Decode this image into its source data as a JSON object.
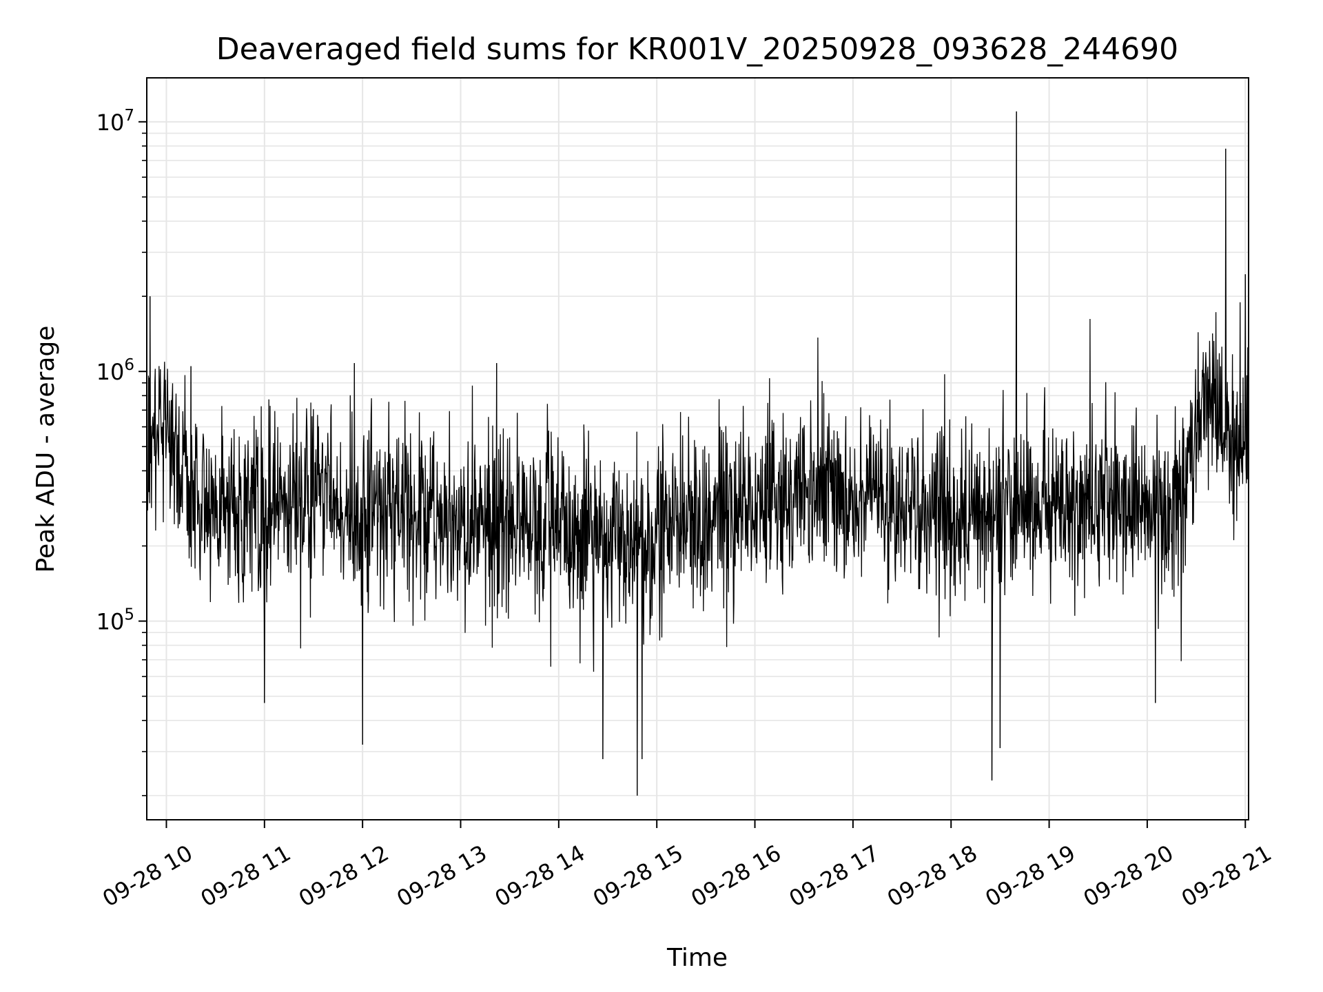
{
  "chart_data": {
    "type": "line",
    "title": "Deaveraged field sums for KR001V_20250928_093628_244690",
    "xlabel": "Time",
    "ylabel": "Peak ADU - average",
    "yscale": "log",
    "ylim": [
      16000,
      15000000
    ],
    "xlim": [
      "2025-09-28 09:48",
      "2025-09-28 21:02"
    ],
    "x_ticks": [
      {
        "t": "2025-09-28 10:00",
        "label": "09-28 10"
      },
      {
        "t": "2025-09-28 11:00",
        "label": "09-28 11"
      },
      {
        "t": "2025-09-28 12:00",
        "label": "09-28 12"
      },
      {
        "t": "2025-09-28 13:00",
        "label": "09-28 13"
      },
      {
        "t": "2025-09-28 14:00",
        "label": "09-28 14"
      },
      {
        "t": "2025-09-28 15:00",
        "label": "09-28 15"
      },
      {
        "t": "2025-09-28 16:00",
        "label": "09-28 16"
      },
      {
        "t": "2025-09-28 17:00",
        "label": "09-28 17"
      },
      {
        "t": "2025-09-28 18:00",
        "label": "09-28 18"
      },
      {
        "t": "2025-09-28 19:00",
        "label": "09-28 19"
      },
      {
        "t": "2025-09-28 20:00",
        "label": "09-28 20"
      },
      {
        "t": "2025-09-28 21:00",
        "label": "09-28 21"
      }
    ],
    "y_ticks": [
      {
        "value": 100000,
        "base": "10",
        "exp": "5"
      },
      {
        "value": 1000000,
        "base": "10",
        "exp": "6"
      },
      {
        "value": 10000000,
        "base": "10",
        "exp": "7"
      }
    ],
    "grid": true,
    "line_color": "#000000",
    "grid_color": "#e6e6e6",
    "series": [
      {
        "x": [
          "2025-09-28 09:48",
          "2025-09-28 09:53",
          "2025-09-28 09:58",
          "2025-09-28 10:05",
          "2025-09-28 10:15",
          "2025-09-28 10:30",
          "2025-09-28 10:45",
          "2025-09-28 11:00",
          "2025-09-28 11:20",
          "2025-09-28 11:40",
          "2025-09-28 12:00",
          "2025-09-28 12:30",
          "2025-09-28 13:00",
          "2025-09-28 13:30",
          "2025-09-28 14:00",
          "2025-09-28 14:30",
          "2025-09-28 15:00",
          "2025-09-28 15:30",
          "2025-09-28 16:00",
          "2025-09-28 16:30",
          "2025-09-28 17:00",
          "2025-09-28 17:30",
          "2025-09-28 18:00",
          "2025-09-28 18:30",
          "2025-09-28 19:00",
          "2025-09-28 19:30",
          "2025-09-28 20:00",
          "2025-09-28 20:20",
          "2025-09-28 20:35",
          "2025-09-28 20:50",
          "2025-09-28 21:02"
        ],
        "y": [
          400000,
          600000,
          700000,
          450000,
          350000,
          300000,
          280000,
          260000,
          300000,
          320000,
          270000,
          260000,
          250000,
          260000,
          240000,
          220000,
          230000,
          260000,
          280000,
          320000,
          320000,
          300000,
          280000,
          260000,
          290000,
          300000,
          280000,
          300000,
          800000,
          500000,
          650000
        ]
      }
    ],
    "spikes": [
      {
        "t": "2025-09-28 09:50",
        "value": 2000000
      },
      {
        "t": "2025-09-28 10:15",
        "value": 1050000
      },
      {
        "t": "2025-09-28 11:55",
        "value": 1080000
      },
      {
        "t": "2025-09-28 13:22",
        "value": 1080000
      },
      {
        "t": "2025-09-28 18:40",
        "value": 11000000
      },
      {
        "t": "2025-09-28 20:48",
        "value": 7800000
      },
      {
        "t": "2025-09-28 21:00",
        "value": 2450000
      }
    ],
    "dips": [
      {
        "t": "2025-09-28 11:00",
        "value": 47000
      },
      {
        "t": "2025-09-28 12:00",
        "value": 32000
      },
      {
        "t": "2025-09-28 14:27",
        "value": 28000
      },
      {
        "t": "2025-09-28 14:48",
        "value": 20000
      },
      {
        "t": "2025-09-28 14:51",
        "value": 28000
      },
      {
        "t": "2025-09-28 18:25",
        "value": 23000
      },
      {
        "t": "2025-09-28 18:30",
        "value": 31000
      },
      {
        "t": "2025-09-28 20:05",
        "value": 47000
      }
    ]
  }
}
